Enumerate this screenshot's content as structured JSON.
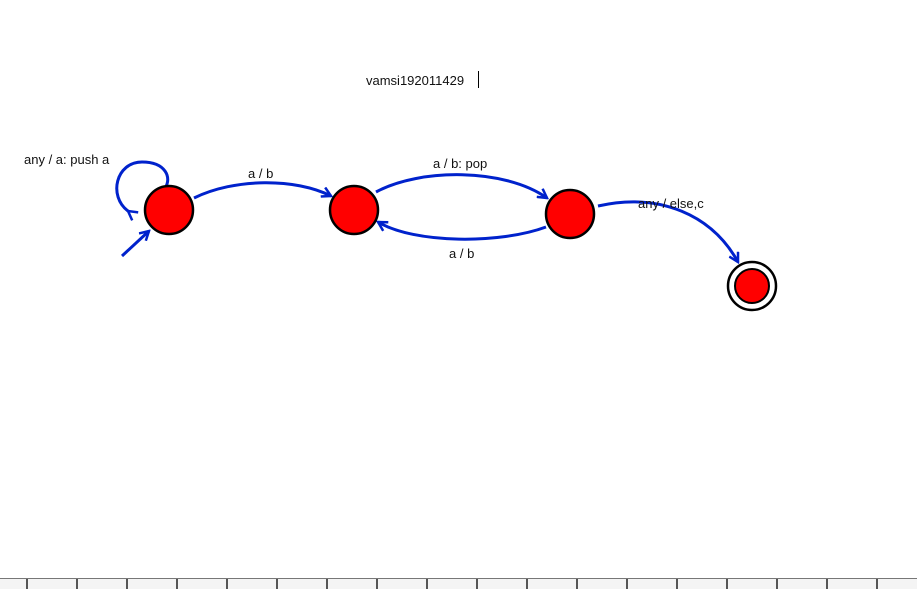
{
  "title_text": "vamsi192011429",
  "colors": {
    "state_fill": "#ff0000",
    "state_stroke": "#000000",
    "edge": "#0022cc",
    "label": "#111111"
  },
  "states": [
    {
      "id": "q0",
      "initial": true,
      "accepting": false
    },
    {
      "id": "q1",
      "initial": false,
      "accepting": false
    },
    {
      "id": "q2",
      "initial": false,
      "accepting": false
    },
    {
      "id": "q3",
      "initial": false,
      "accepting": true
    }
  ],
  "transitions": [
    {
      "from": "q0",
      "to": "q0",
      "label": "any / a: push a"
    },
    {
      "from": "q0",
      "to": "q1",
      "label": "a / b"
    },
    {
      "from": "q1",
      "to": "q2",
      "label": "a / b: pop"
    },
    {
      "from": "q2",
      "to": "q1",
      "label": "a / b"
    },
    {
      "from": "q2",
      "to": "q3",
      "label": "any / else,c"
    }
  ]
}
